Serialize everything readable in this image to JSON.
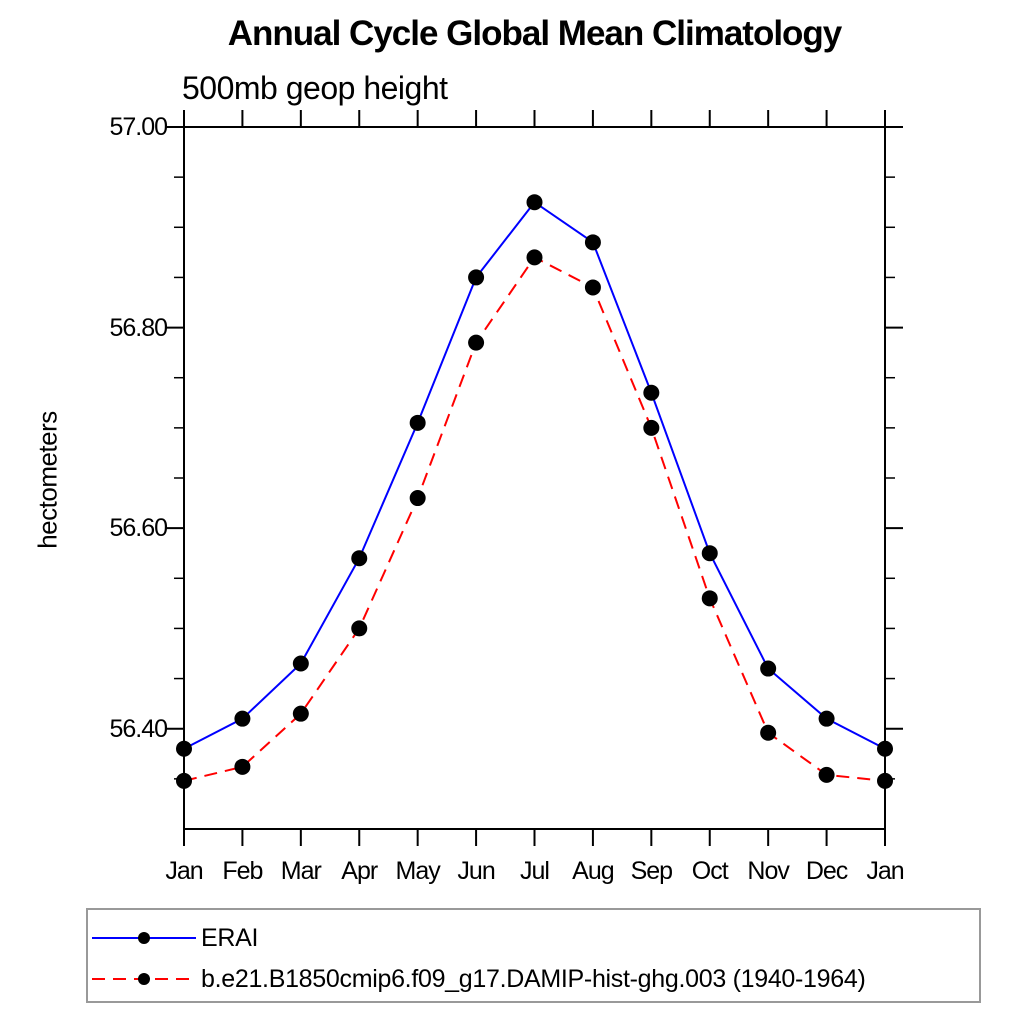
{
  "title": "Annual Cycle Global Mean Climatology",
  "subtitle": "500mb geop height",
  "chart_data": {
    "type": "line",
    "title": "Annual Cycle Global Mean Climatology",
    "subtitle": "500mb geop height",
    "xlabel": "",
    "ylabel": "hectometers",
    "categories": [
      "Jan",
      "Feb",
      "Mar",
      "Apr",
      "May",
      "Jun",
      "Jul",
      "Aug",
      "Sep",
      "Oct",
      "Nov",
      "Dec",
      "Jan"
    ],
    "ylim": [
      56.3,
      57.0
    ],
    "ytick_labels": [
      "57.00",
      "56.80",
      "56.60",
      "56.40"
    ],
    "ytick_values": [
      57.0,
      56.8,
      56.6,
      56.4
    ],
    "minor_tick_step": 0.05,
    "grid": false,
    "legend_position": "bottom-left-box",
    "series": [
      {
        "name": "ERAI",
        "color": "#0000ff",
        "style": "solid",
        "marker": "filled-circle",
        "marker_color": "#000000",
        "values": [
          56.38,
          56.41,
          56.465,
          56.57,
          56.705,
          56.85,
          56.925,
          56.885,
          56.735,
          56.575,
          56.46,
          56.41,
          56.38
        ]
      },
      {
        "name": "b.e21.B1850cmip6.f09_g17.DAMIP-hist-ghg.003 (1940-1964)",
        "color": "#ff0000",
        "style": "dashed",
        "marker": "filled-circle",
        "marker_color": "#000000",
        "values": [
          56.348,
          56.362,
          56.415,
          56.5,
          56.63,
          56.785,
          56.87,
          56.84,
          56.7,
          56.53,
          56.396,
          56.354,
          56.348
        ]
      }
    ]
  },
  "colors": {
    "frame": "#000000",
    "legend_border": "#999999",
    "background": "#ffffff",
    "series_blue": "#0000ff",
    "series_red": "#ff0000",
    "marker": "#000000"
  }
}
